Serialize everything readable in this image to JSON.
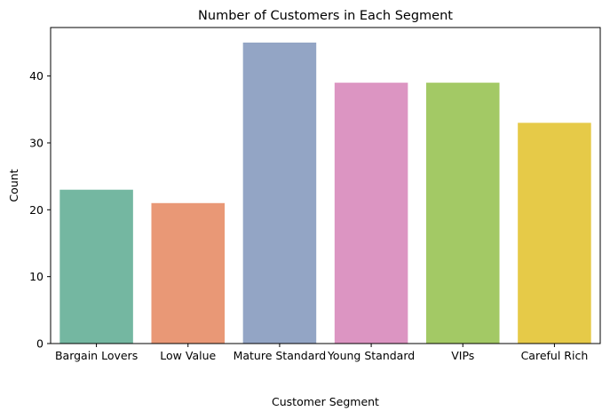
{
  "chart_data": {
    "type": "bar",
    "title": "Number of Customers in Each Segment",
    "xlabel": "Customer Segment",
    "ylabel": "Count",
    "categories": [
      "Bargain Lovers",
      "Low Value",
      "Mature Standard",
      "Young Standard",
      "VIPs",
      "Careful Rich"
    ],
    "values": [
      23,
      21,
      45,
      39,
      39,
      33
    ],
    "colors": [
      "#74b7a1",
      "#e99876",
      "#93a5c5",
      "#dc95c2",
      "#a3c965",
      "#e6ca48"
    ],
    "ylim": [
      0,
      47.25
    ],
    "yticks": [
      0,
      10,
      20,
      30,
      40
    ],
    "grid": false,
    "legend": "none"
  }
}
